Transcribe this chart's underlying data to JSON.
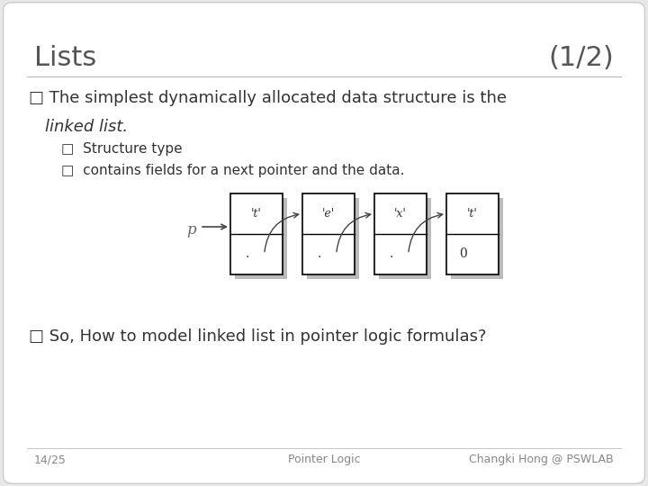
{
  "background_color": "#e8e8e8",
  "slide_bg": "#ffffff",
  "title": "Lists",
  "subtitle": "(1/2)",
  "title_fontsize": 22,
  "title_color": "#555555",
  "bullet1_line1": "□ The simplest dynamically allocated data structure is the",
  "bullet1_line2": "   linked list.",
  "sub_bullet1": "□  Structure type",
  "sub_bullet2": "□  contains fields for a next pointer and the data.",
  "bullet2": "□ So, How to model linked list in pointer logic formulas?",
  "footer_left": "14/25",
  "footer_center": "Pointer Logic",
  "footer_right": "Changki Hong @ PSWLAB",
  "node_labels": [
    "'t'",
    "'e'",
    "'x'",
    "'t'"
  ],
  "node_bottom": [
    ".",
    ".",
    ".",
    "0"
  ],
  "node_color": "#ffffff",
  "node_shadow": "#bbbbbb",
  "node_border": "#000000",
  "arrow_color": "#444444",
  "p_label": "p",
  "text_color": "#333333",
  "footer_color": "#888888"
}
